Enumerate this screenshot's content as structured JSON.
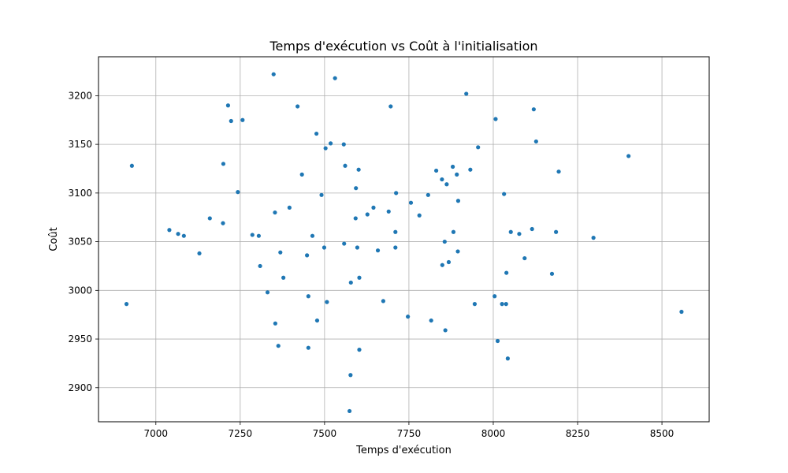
{
  "chart_data": {
    "type": "scatter",
    "title": "Temps d'exécution vs Coût à l'initialisation",
    "xlabel": "Temps d'exécution",
    "ylabel": "Coût",
    "xlim": [
      6830,
      8640
    ],
    "ylim": [
      2865,
      3240
    ],
    "x_ticks": [
      "7000",
      "7250",
      "7500",
      "7750",
      "8000",
      "8250",
      "8500"
    ],
    "y_ticks": [
      "2900",
      "2950",
      "3000",
      "3050",
      "3100",
      "3150",
      "3200"
    ],
    "grid": true,
    "legend": "none",
    "point_color": "#1f77b4",
    "points": [
      [
        6913,
        2986
      ],
      [
        6929,
        3128
      ],
      [
        7040,
        3062
      ],
      [
        7066,
        3058
      ],
      [
        7083,
        3056
      ],
      [
        7129,
        3038
      ],
      [
        7160,
        3074
      ],
      [
        7199,
        3069
      ],
      [
        7200,
        3130
      ],
      [
        7214,
        3190
      ],
      [
        7223,
        3174
      ],
      [
        7243,
        3101
      ],
      [
        7257,
        3175
      ],
      [
        7286,
        3057
      ],
      [
        7305,
        3056
      ],
      [
        7309,
        3025
      ],
      [
        7331,
        2998
      ],
      [
        7349,
        3222
      ],
      [
        7353,
        3080
      ],
      [
        7354,
        2966
      ],
      [
        7363,
        2943
      ],
      [
        7369,
        3039
      ],
      [
        7378,
        3013
      ],
      [
        7396,
        3085
      ],
      [
        7420,
        3189
      ],
      [
        7433,
        3119
      ],
      [
        7448,
        3036
      ],
      [
        7452,
        2994
      ],
      [
        7452,
        2941
      ],
      [
        7464,
        3056
      ],
      [
        7476,
        3161
      ],
      [
        7478,
        2969
      ],
      [
        7491,
        3098
      ],
      [
        7499,
        3044
      ],
      [
        7503,
        3146
      ],
      [
        7507,
        2988
      ],
      [
        7518,
        3151
      ],
      [
        7531,
        3218
      ],
      [
        7557,
        3150
      ],
      [
        7558,
        3048
      ],
      [
        7561,
        3128
      ],
      [
        7574,
        2876
      ],
      [
        7577,
        2913
      ],
      [
        7578,
        3008
      ],
      [
        7592,
        3074
      ],
      [
        7593,
        3105
      ],
      [
        7597,
        3044
      ],
      [
        7601,
        3124
      ],
      [
        7603,
        2939
      ],
      [
        7603,
        3013
      ],
      [
        7627,
        3078
      ],
      [
        7645,
        3085
      ],
      [
        7658,
        3041
      ],
      [
        7674,
        2989
      ],
      [
        7690,
        3081
      ],
      [
        7696,
        3189
      ],
      [
        7710,
        3044
      ],
      [
        7710,
        3060
      ],
      [
        7712,
        3100
      ],
      [
        7747,
        2973
      ],
      [
        7756,
        3090
      ],
      [
        7781,
        3077
      ],
      [
        7807,
        3098
      ],
      [
        7816,
        2969
      ],
      [
        7831,
        3123
      ],
      [
        7848,
        3114
      ],
      [
        7849,
        3026
      ],
      [
        7856,
        3050
      ],
      [
        7858,
        2959
      ],
      [
        7862,
        3109
      ],
      [
        7868,
        3029
      ],
      [
        7880,
        3127
      ],
      [
        7882,
        3060
      ],
      [
        7892,
        3119
      ],
      [
        7895,
        3040
      ],
      [
        7896,
        3092
      ],
      [
        7920,
        3202
      ],
      [
        7932,
        3124
      ],
      [
        7945,
        2986
      ],
      [
        7955,
        3147
      ],
      [
        8004,
        2994
      ],
      [
        8007,
        3176
      ],
      [
        8013,
        2948
      ],
      [
        8026,
        2986
      ],
      [
        8032,
        3099
      ],
      [
        8038,
        2986
      ],
      [
        8039,
        3018
      ],
      [
        8043,
        2930
      ],
      [
        8052,
        3060
      ],
      [
        8077,
        3058
      ],
      [
        8093,
        3033
      ],
      [
        8115,
        3063
      ],
      [
        8120,
        3186
      ],
      [
        8127,
        3153
      ],
      [
        8174,
        3017
      ],
      [
        8186,
        3060
      ],
      [
        8194,
        3122
      ],
      [
        8297,
        3054
      ],
      [
        8401,
        3138
      ],
      [
        8558,
        2978
      ]
    ]
  }
}
